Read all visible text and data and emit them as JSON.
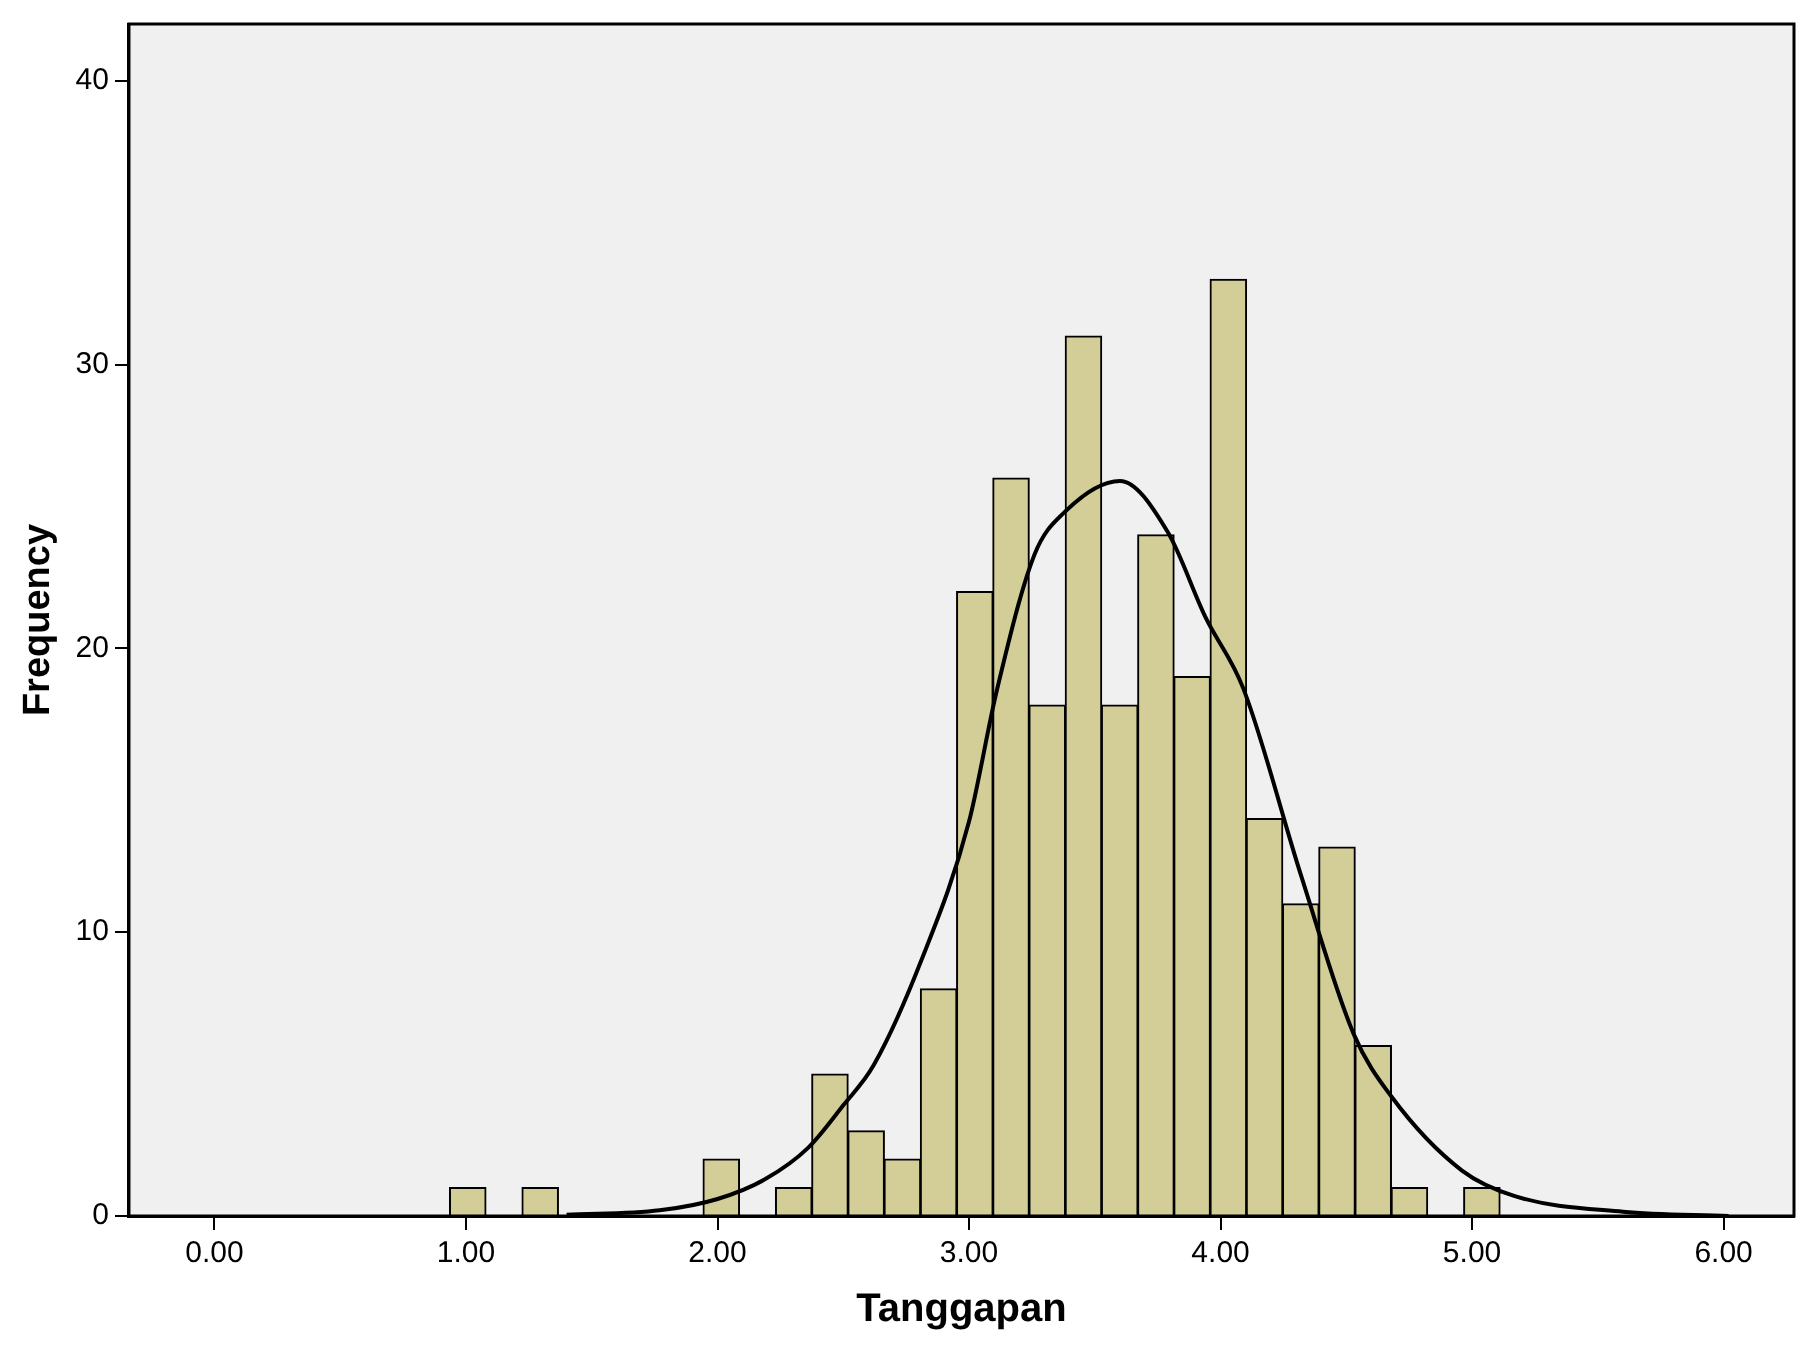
{
  "chart_data": {
    "type": "histogram",
    "xlabel": "Tanggapan",
    "ylabel": "Frequency",
    "bins": [
      0.935,
      1.079,
      1.223,
      1.367,
      1.511,
      1.655,
      1.799,
      1.943,
      2.087,
      2.231,
      2.375,
      2.519,
      2.663,
      2.807,
      2.951,
      3.095,
      3.239,
      3.383,
      3.527,
      3.671,
      3.815,
      3.959,
      4.103,
      4.247,
      4.391,
      4.535,
      4.679,
      4.823,
      4.967,
      5.111
    ],
    "values": [
      1,
      0,
      1,
      0,
      0,
      0,
      0,
      2,
      0,
      1,
      5,
      3,
      2,
      8,
      22,
      26,
      18,
      31,
      18,
      24,
      19,
      33,
      14,
      11,
      13,
      6,
      1,
      0,
      1
    ],
    "color": "#d3ce97",
    "series": [
      {
        "type": "line",
        "color": "#000000",
        "x": [
          1.4,
          1.77,
          2.0,
          2.19,
          2.36,
          2.5,
          2.62,
          2.81,
          3.0,
          3.11,
          3.26,
          3.38,
          3.6,
          3.79,
          3.94,
          4.09,
          4.32,
          4.53,
          4.68,
          4.96,
          5.17,
          5.6,
          6.02
        ],
        "values": [
          0.04,
          0.2,
          0.6,
          1.3,
          2.4,
          3.9,
          5.3,
          9.0,
          13.9,
          18.5,
          23.3,
          24.8,
          25.9,
          24.1,
          21.1,
          18.6,
          12.0,
          6.4,
          4.2,
          1.6,
          0.7,
          0.15,
          0
        ]
      }
    ],
    "xlim": [
      -0.34,
      6.28
    ],
    "ylim": [
      0,
      42
    ],
    "xticks": [
      {
        "value": 0,
        "label": "0.00"
      },
      {
        "value": 1,
        "label": "1.00"
      },
      {
        "value": 2,
        "label": "2.00"
      },
      {
        "value": 3,
        "label": "3.00"
      },
      {
        "value": 4,
        "label": "4.00"
      },
      {
        "value": 5,
        "label": "5.00"
      },
      {
        "value": 6,
        "label": "6.00"
      }
    ],
    "yticks": [
      0,
      10,
      20,
      30,
      40
    ],
    "legend": false,
    "marker": "none",
    "line_style": "solid"
  }
}
